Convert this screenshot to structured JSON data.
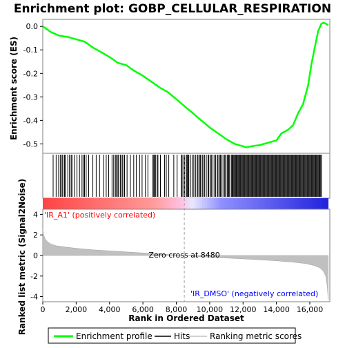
{
  "chart_data": [
    {
      "type": "line",
      "title": "Enrichment plot: GOBP_CELLULAR_RESPIRATION",
      "ylabel": "Enrichment score (ES)",
      "xlim": [
        0,
        17200
      ],
      "ylim": [
        -0.54,
        0.03
      ],
      "grid": false,
      "y_ticks": [
        "0.0",
        "-0.1",
        "-0.2",
        "-0.3",
        "-0.4",
        "-0.5"
      ],
      "y_tick_values": [
        0.0,
        -0.1,
        -0.2,
        -0.3,
        -0.4,
        -0.5
      ],
      "series": [
        {
          "name": "Enrichment profile",
          "color": "#00ff00",
          "x": [
            0,
            500,
            1000,
            1500,
            2000,
            2500,
            3000,
            3500,
            4000,
            4500,
            5000,
            5500,
            6000,
            6500,
            7000,
            7500,
            8000,
            8500,
            9000,
            9500,
            10000,
            10500,
            11000,
            11500,
            12000,
            12200,
            12500,
            13000,
            13500,
            14000,
            14300,
            14700,
            15000,
            15300,
            15600,
            15900,
            16100,
            16300,
            16500,
            16700,
            16850,
            17000,
            17100
          ],
          "values": [
            0.0,
            -0.025,
            -0.04,
            -0.045,
            -0.055,
            -0.065,
            -0.09,
            -0.11,
            -0.13,
            -0.155,
            -0.165,
            -0.19,
            -0.21,
            -0.235,
            -0.26,
            -0.28,
            -0.31,
            -0.34,
            -0.37,
            -0.4,
            -0.43,
            -0.455,
            -0.48,
            -0.5,
            -0.51,
            -0.515,
            -0.51,
            -0.505,
            -0.495,
            -0.485,
            -0.455,
            -0.44,
            -0.42,
            -0.37,
            -0.33,
            -0.25,
            -0.16,
            -0.09,
            -0.02,
            0.012,
            0.015,
            0.01,
            0.005
          ]
        }
      ]
    },
    {
      "type": "hits",
      "legend_label": "Hits",
      "hit_positions": [
        620,
        800,
        950,
        1050,
        1150,
        1200,
        1300,
        1350,
        1500,
        1600,
        1700,
        1750,
        1900,
        2050,
        2200,
        2350,
        2450,
        2500,
        2600,
        2750,
        3000,
        3200,
        3400,
        3650,
        3800,
        3950,
        4150,
        4250,
        4350,
        4400,
        4500,
        4550,
        4650,
        4750,
        4800,
        4900,
        5050,
        5250,
        5450,
        5600,
        5800,
        5950,
        6150,
        6300,
        6600,
        6650,
        6700,
        6750,
        6850,
        6900,
        7050,
        7300,
        7400,
        7550,
        7850,
        8050,
        8300,
        8350,
        8450,
        8500,
        8600,
        8650,
        8700,
        8750,
        8850,
        8950,
        9050,
        9150,
        9250,
        9300,
        9400,
        9450,
        9550,
        9600,
        9700,
        9800,
        9900,
        9950,
        10050,
        10100,
        10200,
        10300,
        10350,
        10450,
        10500,
        10600,
        10650,
        10700,
        10800,
        10900,
        10950,
        11050,
        11100,
        11150,
        11200,
        11300,
        11350,
        11400,
        11450,
        11500,
        11550,
        11600,
        11650,
        11700,
        11750,
        11800,
        11850,
        11900,
        11950,
        12000,
        12050,
        12100,
        12150,
        12200,
        12250,
        12300,
        12350,
        12400,
        12450,
        12500,
        12550,
        12600,
        12650,
        12700,
        12750,
        12800,
        12850,
        12900,
        12950,
        13000,
        13050,
        13100,
        13150,
        13200,
        13250,
        13300,
        13350,
        13400,
        13450,
        13500,
        13550,
        13600,
        13650,
        13700,
        13750,
        13800,
        13850,
        13900,
        13950,
        14000,
        14050,
        14100,
        14150,
        14200,
        14250,
        14300,
        14350,
        14400,
        14450,
        14500,
        14550,
        14600,
        14650,
        14700,
        14750,
        14800,
        14850,
        14900,
        14950,
        15000,
        15050,
        15100,
        15150,
        15200,
        15250,
        15300,
        15350,
        15400,
        15450,
        15500,
        15550,
        15600,
        15650,
        15700,
        15750,
        15800,
        15850,
        15900,
        15950,
        16000,
        16050,
        16100,
        16150,
        16200,
        16250,
        16300,
        16350,
        16400,
        16450,
        16500,
        16550,
        16600,
        16650,
        16700
      ]
    },
    {
      "type": "area",
      "xlabel": "Rank in Ordered Dataset",
      "ylabel": "Ranked list metric (Signal2Noise)",
      "xlim": [
        0,
        17200
      ],
      "ylim": [
        -4.5,
        4.5
      ],
      "x_ticks": [
        "0",
        "2,000",
        "4,000",
        "6,000",
        "8,000",
        "10,000",
        "12,000",
        "14,000",
        "16,000"
      ],
      "x_tick_values": [
        0,
        2000,
        4000,
        6000,
        8000,
        10000,
        12000,
        14000,
        16000
      ],
      "y_ticks": [
        "4",
        "2",
        "0",
        "-2",
        "-4"
      ],
      "y_tick_values": [
        4,
        2,
        0,
        -2,
        -4
      ],
      "series": [
        {
          "name": "Ranking metric scores",
          "color": "#c0c0c0",
          "x": [
            0,
            50,
            150,
            300,
            500,
            800,
            1200,
            2000,
            3000,
            4000,
            5000,
            6000,
            7000,
            8000,
            8480,
            9000,
            10000,
            11000,
            12000,
            13000,
            14000,
            15000,
            15800,
            16300,
            16600,
            16800,
            16950,
            17050,
            17100
          ],
          "values": [
            2.6,
            2.0,
            1.6,
            1.3,
            1.1,
            0.95,
            0.85,
            0.7,
            0.55,
            0.45,
            0.35,
            0.25,
            0.15,
            0.05,
            0.0,
            -0.08,
            -0.17,
            -0.25,
            -0.33,
            -0.42,
            -0.52,
            -0.65,
            -0.8,
            -1.0,
            -1.2,
            -1.5,
            -2.0,
            -3.0,
            -4.3
          ]
        }
      ],
      "zero_cross_value": 8480,
      "annotations": {
        "positive": "'IR_A1' (positively correlated)",
        "negative": "'IR_DMSO' (negatively correlated)",
        "zero_cross": "Zero cross at 8480"
      }
    }
  ],
  "legend": {
    "items": [
      {
        "label": "Enrichment profile",
        "color": "#00ff00"
      },
      {
        "label": "Hits",
        "color": "#000000"
      },
      {
        "label": "Ranking metric scores",
        "color": "#c0c0c0"
      }
    ]
  },
  "colors": {
    "positive_annotation": "#ff0000",
    "negative_annotation": "#0000ff",
    "hit_line": "#000000",
    "bar_positive_strong": "#ff4444",
    "bar_positive_mid": "#ff9999",
    "bar_positive_light": "#ffc0e0",
    "bar_neutral": "#e8e8ff",
    "bar_negative_mid": "#9090ff",
    "bar_negative_strong": "#2020dd"
  }
}
